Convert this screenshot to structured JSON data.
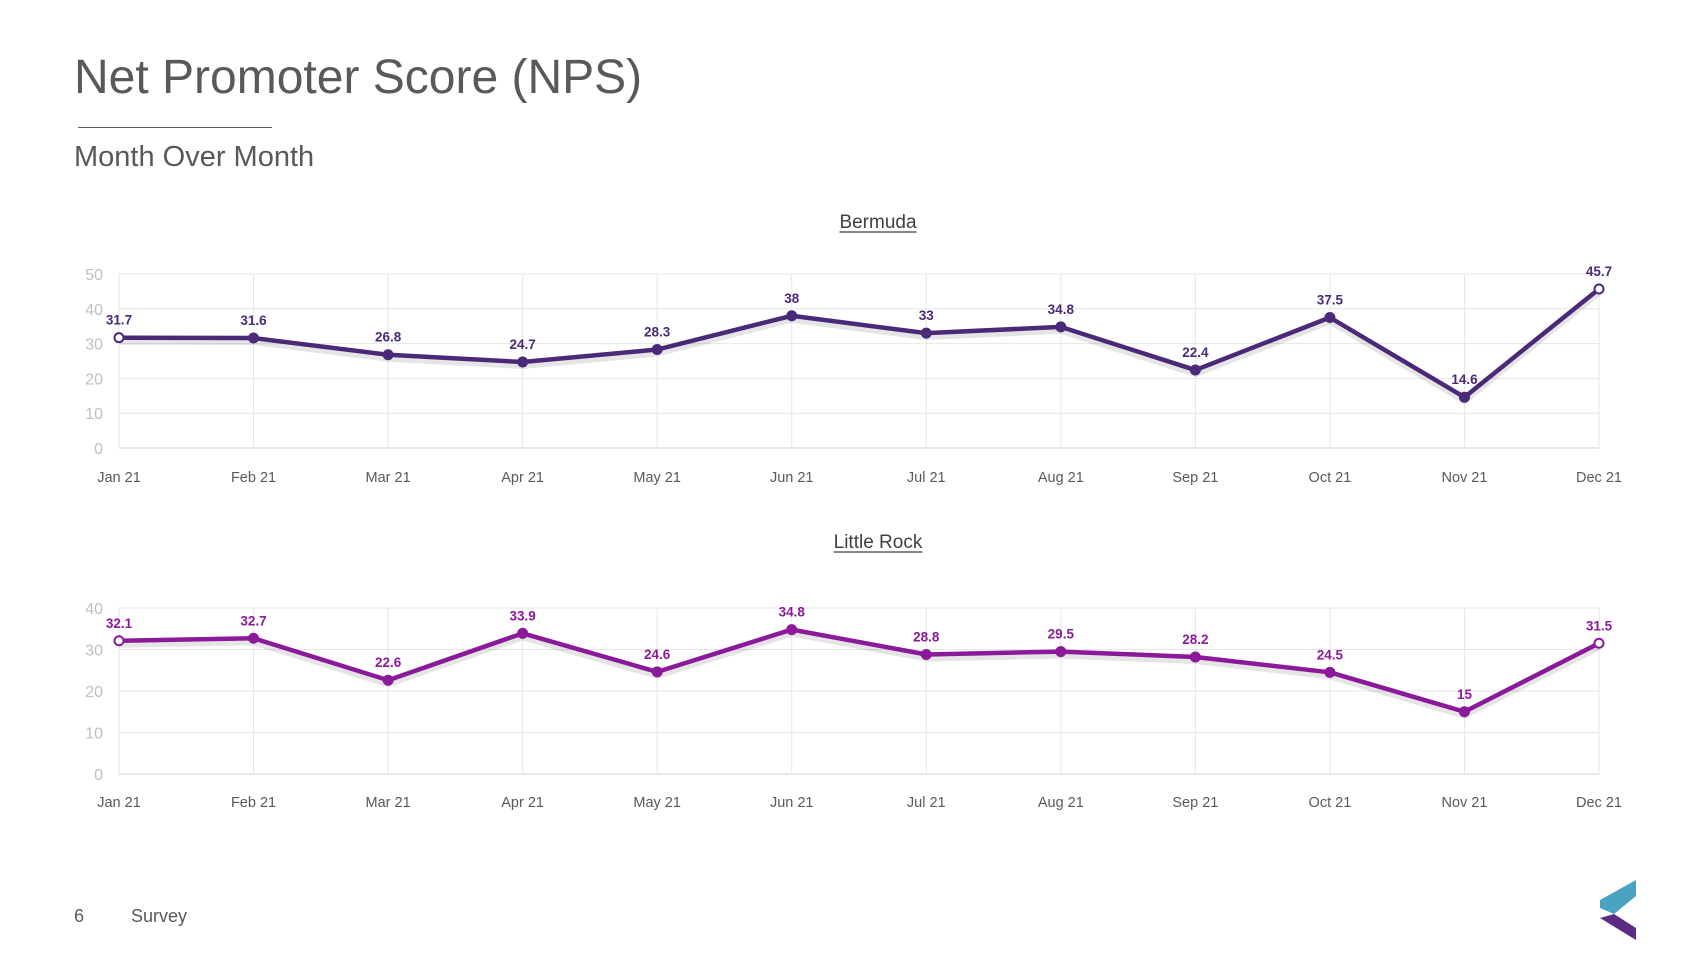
{
  "slide": {
    "title": "Net Promoter Score (NPS)",
    "subtitle": "Month Over Month",
    "page_number": "6",
    "footer_label": "Survey"
  },
  "colors": {
    "bermuda_line": "#4a2a78",
    "little_rock_line": "#8b1a9b",
    "logo_teal": "#4aa3c0",
    "logo_purple": "#5b2c83"
  },
  "icons": {
    "logo": "brand-chevron-logo"
  },
  "chart_data": [
    {
      "type": "line",
      "title": "Bermuda",
      "categories": [
        "Jan 21",
        "Feb 21",
        "Mar 21",
        "Apr 21",
        "May 21",
        "Jun 21",
        "Jul 21",
        "Aug 21",
        "Sep 21",
        "Oct 21",
        "Nov 21",
        "Dec 21"
      ],
      "series": [
        {
          "values": [
            31.7,
            31.6,
            26.8,
            24.7,
            28.3,
            38,
            33,
            34.8,
            22.4,
            37.5,
            14.6,
            45.7
          ]
        }
      ],
      "ylim": [
        0,
        50
      ],
      "yticks": [
        0,
        10,
        20,
        30,
        40,
        50
      ],
      "grid": true,
      "data_labels": true
    },
    {
      "type": "line",
      "title": "Little Rock",
      "categories": [
        "Jan 21",
        "Feb 21",
        "Mar 21",
        "Apr 21",
        "May 21",
        "Jun 21",
        "Jul 21",
        "Aug 21",
        "Sep 21",
        "Oct 21",
        "Nov 21",
        "Dec 21"
      ],
      "series": [
        {
          "values": [
            32.1,
            32.7,
            22.6,
            33.9,
            24.6,
            34.8,
            28.8,
            29.5,
            28.2,
            24.5,
            15,
            31.5
          ]
        }
      ],
      "ylim": [
        0,
        40
      ],
      "yticks": [
        0,
        10,
        20,
        30,
        40
      ],
      "grid": true,
      "data_labels": true
    }
  ]
}
